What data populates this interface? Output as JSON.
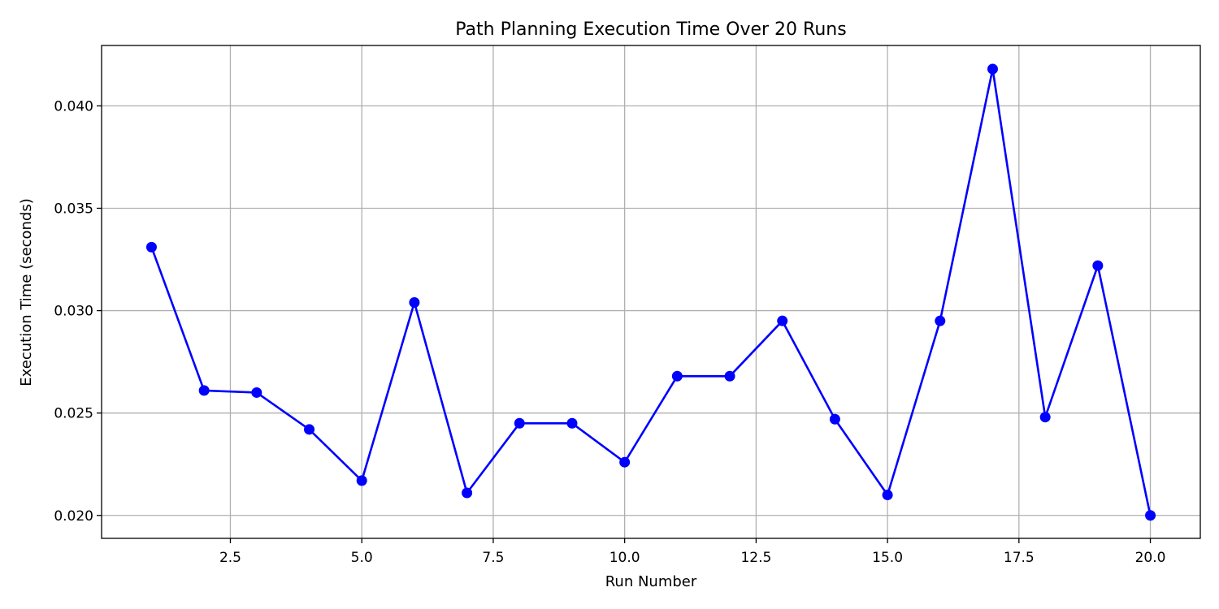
{
  "chart_data": {
    "type": "line",
    "title": "Path Planning Execution Time Over 20 Runs",
    "xlabel": "Run Number",
    "ylabel": "Execution Time (seconds)",
    "xlim": [
      0.05,
      20.95
    ],
    "ylim": [
      0.01888,
      0.04295
    ],
    "x_ticks": [
      2.5,
      5.0,
      7.5,
      10.0,
      12.5,
      15.0,
      17.5,
      20.0
    ],
    "x_tick_labels": [
      "2.5",
      "5.0",
      "7.5",
      "10.0",
      "12.5",
      "15.0",
      "17.5",
      "20.0"
    ],
    "y_ticks": [
      0.02,
      0.025,
      0.03,
      0.035,
      0.04
    ],
    "y_tick_labels": [
      "0.020",
      "0.025",
      "0.030",
      "0.035",
      "0.040"
    ],
    "grid": true,
    "series": [
      {
        "color": "#0000ff",
        "marker": "circle",
        "x": [
          1,
          2,
          3,
          4,
          5,
          6,
          7,
          8,
          9,
          10,
          11,
          12,
          13,
          14,
          15,
          16,
          17,
          18,
          19,
          20
        ],
        "y": [
          0.0331,
          0.0261,
          0.026,
          0.0242,
          0.0217,
          0.0304,
          0.0211,
          0.0245,
          0.0245,
          0.0226,
          0.0268,
          0.0268,
          0.0295,
          0.0247,
          0.021,
          0.0295,
          0.0418,
          0.0248,
          0.0322,
          0.02
        ]
      }
    ]
  }
}
